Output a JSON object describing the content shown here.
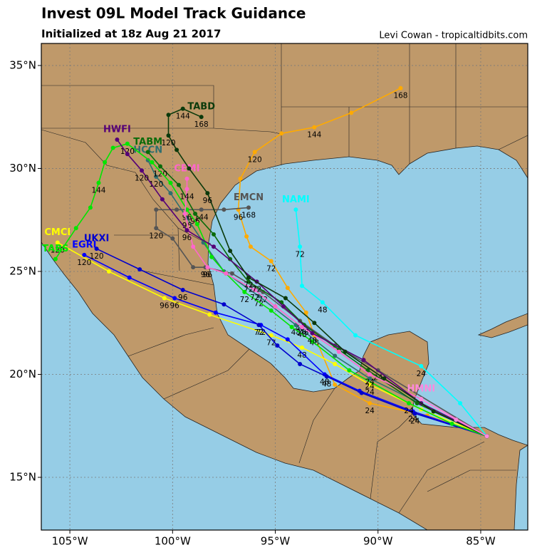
{
  "chart_data": {
    "type": "track-map",
    "title": "Invest 09L Model Track Guidance",
    "subtitle": "Initialized at 18z Aug 21 2017",
    "credit": "Levi Cowan - tropicaltidbits.com",
    "xlim": [
      -106.39,
      -82.71
    ],
    "ylim": [
      12.44,
      36.07
    ],
    "xticks": [
      {
        "value": -105,
        "label": "105°W"
      },
      {
        "value": -100,
        "label": "100°W"
      },
      {
        "value": -95,
        "label": "95°W"
      },
      {
        "value": -90,
        "label": "90°W"
      },
      {
        "value": -85,
        "label": "85°W"
      }
    ],
    "yticks": [
      {
        "value": 15,
        "label": "15°N"
      },
      {
        "value": 20,
        "label": "20°N"
      },
      {
        "value": 25,
        "label": "25°N"
      },
      {
        "value": 30,
        "label": "30°N"
      },
      {
        "value": 35,
        "label": "35°N"
      }
    ],
    "grid": true,
    "series": [
      {
        "color": "#ffaa00",
        "lon": [
          -84.7,
          -87.6,
          -90.4,
          -92.1,
          -93.1,
          -93.5,
          -94.4,
          -95.2,
          -96.2,
          -96.4,
          -96.8,
          -96.7,
          -96.0,
          -94.7,
          -93.1,
          -91.3,
          -88.9
        ],
        "lat": [
          17.0,
          18.0,
          18.6,
          19.5,
          21.9,
          23.0,
          24.2,
          25.5,
          26.2,
          26.7,
          28.0,
          29.5,
          30.8,
          31.7,
          32.0,
          32.7,
          33.9
        ],
        "hours": [
          null,
          null,
          24,
          null,
          48,
          null,
          null,
          72,
          null,
          null,
          96,
          null,
          120,
          null,
          144,
          null,
          168
        ]
      },
      {
        "name": "NAMI",
        "color": "#00ffff",
        "lon": [
          -84.7,
          -86.0,
          -87.9,
          -91.1,
          -92.7,
          -93.7,
          -93.8,
          -94.0
        ],
        "lat": [
          17.0,
          18.6,
          20.4,
          21.9,
          23.5,
          24.3,
          26.2,
          28.0
        ],
        "hours": [
          null,
          null,
          24,
          null,
          48,
          null,
          72,
          null
        ]
      },
      {
        "name": "CMCI",
        "color": "#ffff00",
        "lon": [
          -84.7,
          -87.9,
          -90.4,
          -92.1,
          -93.7,
          -95.2,
          -98.2,
          -100.4,
          -103.1,
          -105.6
        ],
        "lat": [
          17.0,
          18.3,
          19.5,
          20.5,
          21.3,
          21.9,
          22.9,
          23.7,
          25.0,
          26.4
        ],
        "hours": [
          null,
          null,
          24,
          null,
          48,
          72,
          null,
          96,
          null,
          120
        ]
      },
      {
        "name": "EGRI",
        "color": "#0000ff",
        "lon": [
          -84.7,
          -88.3,
          -90.9,
          -92.6,
          -94.4,
          -95.7,
          -97.9,
          -99.9,
          -102.1,
          -104.3
        ],
        "lat": [
          17.0,
          18.2,
          19.2,
          20.0,
          21.7,
          22.4,
          23.0,
          23.7,
          24.7,
          25.8
        ],
        "hours": [
          null,
          24,
          null,
          48,
          null,
          72,
          null,
          96,
          null,
          120
        ]
      },
      {
        "name": "UKXI",
        "color": "#0000cc",
        "lon": [
          -84.7,
          -88.2,
          -90.8,
          -92.5,
          -93.8,
          -94.9,
          -95.8,
          -97.5,
          -99.5,
          -101.6,
          -103.7
        ],
        "lat": [
          17.0,
          18.1,
          19.1,
          19.9,
          20.5,
          21.4,
          22.4,
          23.4,
          24.1,
          25.1,
          26.1
        ],
        "hours": [
          null,
          24,
          null,
          48,
          null,
          null,
          72,
          null,
          96,
          null,
          120
        ]
      },
      {
        "name": "EMCN",
        "color": "#555555",
        "lon": [
          -84.7,
          -90.0,
          -92.1,
          -93.8,
          -95.6,
          -97.1,
          -98.4,
          -99.0,
          -100.0,
          -100.8,
          -100.8,
          -99.8,
          -98.6,
          -97.5,
          -96.3
        ],
        "lat": [
          17.0,
          20.2,
          21.4,
          22.6,
          24.0,
          24.9,
          25.2,
          25.2,
          26.6,
          27.1,
          28.0,
          28.0,
          28.0,
          28.0,
          28.1
        ],
        "hours": [
          null,
          24,
          null,
          48,
          72,
          null,
          96,
          null,
          null,
          120,
          null,
          null,
          144,
          null,
          168
        ]
      },
      {
        "name": "HCCN",
        "color": "#2f6f6f",
        "lon": [
          -84.7,
          -90.4,
          -92.1,
          -94.0,
          -95.8,
          -97.5,
          -98.5,
          -99.3,
          -100.1,
          -100.8,
          -101.2
        ],
        "lat": [
          17.0,
          19.8,
          20.9,
          22.4,
          23.8,
          25.0,
          26.4,
          27.6,
          28.8,
          29.6,
          30.4
        ],
        "hours": [
          null,
          24,
          null,
          48,
          72,
          null,
          null,
          96,
          null,
          120,
          null
        ]
      },
      {
        "name": "TABM",
        "color": "#0a6b0a",
        "lon": [
          -84.7,
          -88.1,
          -90.5,
          -91.9,
          -93.6,
          -94.7,
          -96.3,
          -97.2,
          -98.0,
          -98.9,
          -99.7,
          -100.6,
          -101.2
        ],
        "lat": [
          17.0,
          18.6,
          20.2,
          21.2,
          22.4,
          23.5,
          24.5,
          25.6,
          26.8,
          27.8,
          29.2,
          30.1,
          30.8
        ],
        "hours": [
          null,
          null,
          null,
          null,
          48,
          null,
          72,
          null,
          null,
          96,
          null,
          120,
          null
        ]
      },
      {
        "name": "TABS",
        "color": "#00e600",
        "lon": [
          -84.7,
          -86.4,
          -88.5,
          -91.4,
          -93.2,
          -94.2,
          -95.2,
          -96.5,
          -97.4,
          -98.1,
          -98.8,
          -99.3,
          -100.1,
          -101.0,
          -102.2,
          -102.9,
          -103.3,
          -103.6,
          -104.0,
          -104.7,
          -105.7
        ],
        "lat": [
          17.0,
          17.6,
          18.6,
          20.2,
          21.6,
          22.3,
          23.1,
          24.0,
          24.9,
          25.7,
          27.3,
          28.0,
          29.3,
          30.3,
          31.2,
          31.0,
          30.3,
          29.3,
          28.1,
          27.1,
          25.6
        ],
        "hours": [
          null,
          null,
          24,
          null,
          null,
          null,
          null,
          72,
          null,
          null,
          null,
          96,
          null,
          null,
          120,
          null,
          null,
          144,
          null,
          null,
          null
        ]
      },
      {
        "name": "CEMI",
        "color": "#ff66cc",
        "lon": [
          -84.7,
          -87.9,
          -90.4,
          -91.9,
          -93.7,
          -95.0,
          -96.0,
          -97.4,
          -98.3,
          -99.0,
          -99.4,
          -99.3,
          -99.3
        ],
        "lat": [
          17.0,
          18.8,
          20.0,
          21.1,
          22.3,
          23.3,
          24.1,
          24.9,
          25.2,
          26.2,
          27.8,
          29.0,
          29.5
        ],
        "hours": [
          null,
          null,
          24,
          null,
          48,
          null,
          72,
          null,
          96,
          null,
          null,
          144,
          null
        ]
      },
      {
        "name": "HWFI",
        "color": "#550077",
        "lon": [
          -84.7,
          -87.9,
          -90.7,
          -93.2,
          -94.6,
          -95.9,
          -98.0,
          -99.3,
          -100.5,
          -101.5,
          -102.2,
          -102.7
        ],
        "lat": [
          17.0,
          18.6,
          20.7,
          22.0,
          23.3,
          24.5,
          26.2,
          27.0,
          28.5,
          29.9,
          30.7,
          31.4
        ],
        "hours": [
          null,
          null,
          null,
          48,
          null,
          72,
          null,
          96,
          null,
          120,
          null,
          null
        ]
      },
      {
        "name": "TABD",
        "color": "#0b3a0b",
        "lon": [
          -84.7,
          -87.3,
          -89.7,
          -91.6,
          -93.1,
          -94.5,
          -96.3,
          -97.2,
          -98.3,
          -99.2,
          -99.8,
          -100.2,
          -100.2,
          -99.5,
          -98.6
        ],
        "lat": [
          17.0,
          18.2,
          19.8,
          21.1,
          22.5,
          23.7,
          24.7,
          26.0,
          28.8,
          30.0,
          30.9,
          31.6,
          32.6,
          32.9,
          32.5
        ],
        "hours": [
          null,
          null,
          null,
          null,
          null,
          null,
          72,
          null,
          96,
          null,
          null,
          120,
          null,
          144,
          168
        ]
      },
      {
        "name": "HMNI",
        "color": "#ff88dd",
        "lon": [
          -84.7,
          -86.2,
          -87.9
        ],
        "lat": [
          17.0,
          17.8,
          18.8
        ],
        "hours": [
          null,
          null,
          null
        ]
      }
    ]
  }
}
